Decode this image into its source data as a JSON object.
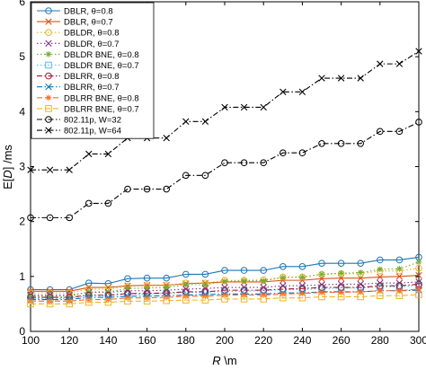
{
  "chart_data": {
    "type": "line",
    "xlabel_parts": [
      "R",
      " \\m"
    ],
    "ylabel_parts": [
      "E[",
      "D",
      "] /ms"
    ],
    "xlim": [
      100,
      300
    ],
    "ylim": [
      0,
      6
    ],
    "xticks": [
      100,
      120,
      140,
      160,
      180,
      200,
      220,
      240,
      260,
      280,
      300
    ],
    "yticks": [
      0,
      1,
      2,
      3,
      4,
      5,
      6
    ],
    "x": [
      100,
      110,
      120,
      130,
      140,
      150,
      160,
      170,
      180,
      190,
      200,
      210,
      220,
      230,
      240,
      250,
      260,
      270,
      280,
      290,
      300
    ],
    "legend_position": "top-left",
    "grid": false,
    "series": [
      {
        "name": "DBLR, θ=0.8",
        "color": "#1f77b4",
        "dash": "solid",
        "marker": "circle",
        "values": [
          0.76,
          0.76,
          0.76,
          0.88,
          0.87,
          0.96,
          0.97,
          0.97,
          1.04,
          1.04,
          1.11,
          1.11,
          1.11,
          1.18,
          1.18,
          1.24,
          1.24,
          1.24,
          1.3,
          1.3,
          1.35
        ]
      },
      {
        "name": "DBLR, θ=0.7",
        "color": "#d95319",
        "dash": "solid",
        "marker": "x",
        "values": [
          0.73,
          0.73,
          0.73,
          0.8,
          0.8,
          0.83,
          0.84,
          0.84,
          0.87,
          0.88,
          0.9,
          0.9,
          0.9,
          0.93,
          0.93,
          0.96,
          0.97,
          0.97,
          0.99,
          1.0,
          1.02
        ]
      },
      {
        "name": "DBLDR, θ=0.8",
        "color": "#edb120",
        "dash": "dot",
        "marker": "circle",
        "values": [
          0.7,
          0.7,
          0.7,
          0.77,
          0.77,
          0.82,
          0.83,
          0.83,
          0.88,
          0.88,
          0.93,
          0.93,
          0.94,
          0.99,
          0.99,
          1.04,
          1.05,
          1.05,
          1.1,
          1.1,
          1.15
        ]
      },
      {
        "name": "DBLDR, θ=0.7",
        "color": "#7e2f8e",
        "dash": "dot",
        "marker": "x",
        "values": [
          0.66,
          0.66,
          0.66,
          0.71,
          0.71,
          0.74,
          0.74,
          0.75,
          0.77,
          0.78,
          0.8,
          0.8,
          0.8,
          0.83,
          0.83,
          0.85,
          0.86,
          0.86,
          0.88,
          0.88,
          0.9
        ]
      },
      {
        "name": "DBLDR BNE, θ=0.8",
        "color": "#77ac30",
        "dash": "dot",
        "marker": "star",
        "values": [
          0.64,
          0.64,
          0.64,
          0.72,
          0.72,
          0.78,
          0.79,
          0.8,
          0.85,
          0.85,
          0.91,
          0.92,
          0.92,
          0.98,
          0.99,
          1.04,
          1.06,
          1.07,
          1.13,
          1.14,
          1.26
        ]
      },
      {
        "name": "DBLDR BNE, θ=0.7",
        "color": "#4dbeee",
        "dash": "dot",
        "marker": "square",
        "values": [
          0.6,
          0.6,
          0.6,
          0.65,
          0.65,
          0.68,
          0.68,
          0.69,
          0.71,
          0.71,
          0.73,
          0.73,
          0.74,
          0.76,
          0.76,
          0.78,
          0.79,
          0.79,
          0.81,
          0.81,
          0.84
        ]
      },
      {
        "name": "DBLRR, θ=0.8",
        "color": "#a2142f",
        "dash": "dashdot",
        "marker": "circle",
        "values": [
          0.62,
          0.62,
          0.62,
          0.66,
          0.66,
          0.69,
          0.69,
          0.7,
          0.72,
          0.72,
          0.75,
          0.75,
          0.75,
          0.77,
          0.78,
          0.8,
          0.8,
          0.8,
          0.83,
          0.83,
          0.86
        ]
      },
      {
        "name": "DBLRR, θ=0.7",
        "color": "#0072bd",
        "dash": "dashdot",
        "marker": "x",
        "values": [
          0.58,
          0.58,
          0.58,
          0.62,
          0.62,
          0.64,
          0.64,
          0.65,
          0.66,
          0.67,
          0.68,
          0.68,
          0.68,
          0.7,
          0.7,
          0.72,
          0.72,
          0.72,
          0.74,
          0.74,
          0.75
        ]
      },
      {
        "name": "DBLRR BNE, θ=0.8",
        "color": "#ff6929",
        "dash": "dash",
        "marker": "star",
        "values": [
          0.55,
          0.55,
          0.55,
          0.58,
          0.58,
          0.61,
          0.61,
          0.62,
          0.64,
          0.64,
          0.66,
          0.66,
          0.66,
          0.68,
          0.69,
          0.71,
          0.71,
          0.72,
          0.74,
          0.74,
          0.77
        ]
      },
      {
        "name": "DBLRR BNE, θ=0.7",
        "color": "#f0b323",
        "dash": "dash",
        "marker": "square",
        "values": [
          0.5,
          0.5,
          0.5,
          0.53,
          0.53,
          0.55,
          0.55,
          0.56,
          0.57,
          0.57,
          0.59,
          0.59,
          0.59,
          0.61,
          0.61,
          0.63,
          0.63,
          0.63,
          0.65,
          0.65,
          0.67
        ]
      },
      {
        "name": "802.11p, W=32",
        "color": "#000000",
        "dash": "dashdot",
        "marker": "circle",
        "values": [
          2.07,
          2.07,
          2.07,
          2.33,
          2.33,
          2.59,
          2.59,
          2.59,
          2.84,
          2.84,
          3.07,
          3.07,
          3.07,
          3.25,
          3.25,
          3.42,
          3.42,
          3.42,
          3.64,
          3.64,
          3.81
        ]
      },
      {
        "name": "802.11p, W=64",
        "color": "#000000",
        "dash": "dashdot",
        "marker": "x",
        "values": [
          2.94,
          2.94,
          2.94,
          3.23,
          3.23,
          3.52,
          3.52,
          3.52,
          3.82,
          3.82,
          4.08,
          4.08,
          4.08,
          4.36,
          4.36,
          4.61,
          4.61,
          4.61,
          4.87,
          4.87,
          5.1
        ]
      }
    ]
  }
}
